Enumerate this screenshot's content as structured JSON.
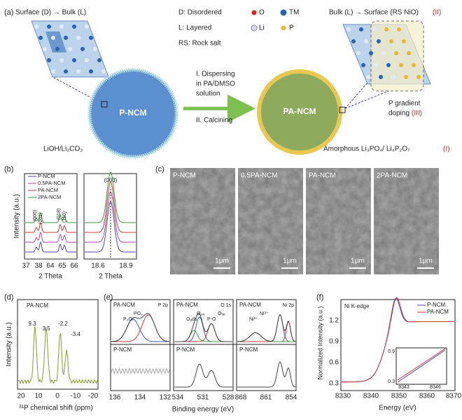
{
  "panel_a": {
    "label": "(a)",
    "left_title": "Surface (D) → Bulk (L)",
    "legend": [
      "D: Disordered",
      "L: Layered",
      "RS: Rock salt"
    ],
    "atoms": [
      "O",
      "TM",
      "Li",
      "P"
    ],
    "right_title": "Bulk (L) → Surface (RS NiO)",
    "right_title_roman": "(II)",
    "particle_left": "P-NCM",
    "particle_right": "PA-NCM",
    "step1": [
      "I. Dispersing",
      "in PA/DMSO",
      "solution"
    ],
    "step2": "II. Calcining",
    "coating_left": "LiOH/Li₂CO₃",
    "coating_right": "Amorphous Li₃PO₄/ Li₄P₂O₇",
    "coating_right_roman": "(I)",
    "doping": [
      "P gradient",
      "doping"
    ],
    "doping_roman": "(III)"
  },
  "panel_b": {
    "label": "(b)",
    "legend": [
      "P-NCM",
      "0.5PA-NCM",
      "PA-NCM",
      "2PA-NCM"
    ],
    "peaks_left": [
      "(006)",
      "(102)",
      "(018)",
      "(110)"
    ],
    "peak_right": "(003)",
    "ylabel": "Intensity (a.u.)",
    "xlabel_left": "2 Theta",
    "xlabel_right": "2 Theta",
    "xticks_left": [
      "37",
      "38",
      "64",
      "65",
      "66"
    ],
    "xticks_right": [
      "18.6",
      "18.9"
    ]
  },
  "panel_c": {
    "label": "(c)",
    "images": [
      {
        "name": "P-NCM",
        "scale": "1μm"
      },
      {
        "name": "0.5PA-NCM",
        "scale": "1μm"
      },
      {
        "name": "PA-NCM",
        "scale": "1μm"
      },
      {
        "name": "2PA-NCM",
        "scale": "1μm"
      }
    ]
  },
  "panel_d": {
    "label": "(d)",
    "sample": "PA-NCM",
    "peaks": [
      "9.3",
      "3.5",
      "-2.2",
      "-3.4"
    ],
    "ylabel": "Intensity (a.u.)",
    "xlabel": "³¹P chemical shift (ppm)",
    "xticks": [
      "20",
      "10",
      "0",
      "-10",
      "-20"
    ]
  },
  "panel_e": {
    "label": "(e)",
    "xlabel": "Binding energy (eV)",
    "subpanels": [
      {
        "core": "P 2p",
        "top": "PA-NCM",
        "bottom": "P-NCM",
        "peaks": [
          "P₂O₇",
          "PO₄"
        ],
        "xticks": [
          "136",
          "134",
          "132"
        ]
      },
      {
        "core": "O 1s",
        "top": "PA-NCM",
        "bottom": "P-NCM",
        "peaks": [
          "Oₐds",
          "Oₒₓᵢ",
          "P-O",
          "Oₗₐₜ"
        ],
        "xticks": [
          "534",
          "531",
          "528"
        ]
      },
      {
        "core": "Ni 2p",
        "top": "PA-NCM",
        "bottom": "P-NCM",
        "peaks": [
          "Ni²⁺",
          "Ni³⁺"
        ],
        "xticks": [
          "868",
          "861",
          "854"
        ]
      }
    ]
  },
  "panel_f": {
    "label": "(f)",
    "edge": "Ni K-edge",
    "legend": [
      "P-NCM",
      "PA-NCM"
    ],
    "ylabel": "Normalized Intensity (a.u.)",
    "xlabel": "Energy (eV)",
    "yticks": [
      "0.3",
      "0.6",
      "0.9",
      "1.2"
    ],
    "xticks": [
      "8330",
      "8340",
      "8350",
      "8360",
      "8370"
    ],
    "inset_yticks": [
      "0.9",
      "0.3"
    ],
    "inset_xticks": [
      "8343",
      "8346"
    ]
  }
}
